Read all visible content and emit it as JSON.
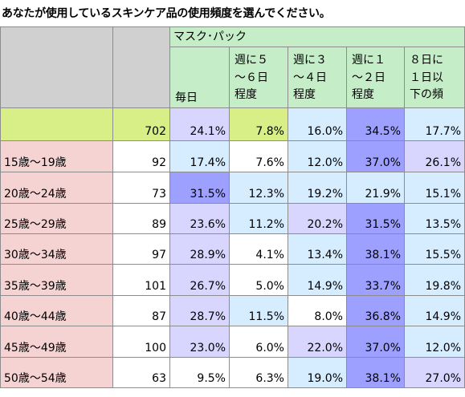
{
  "title": "あなたが使用しているスキンケア品の使用頻度を選んでください。",
  "chart_data": {
    "type": "table",
    "group_header": "マスク･パック",
    "columns": [
      [
        "毎日"
      ],
      [
        "週に５",
        "～６日",
        "程度"
      ],
      [
        "週に３",
        "～４日",
        "程度"
      ],
      [
        "週に１",
        "～２日",
        "程度"
      ],
      [
        "８日に",
        "１日以",
        "下の頻"
      ]
    ],
    "rows": [
      {
        "label": "",
        "n": "702",
        "values": [
          "24.1%",
          "7.8%",
          "16.0%",
          "34.5%",
          "17.7%"
        ]
      },
      {
        "label": "15歳～19歳",
        "n": "92",
        "values": [
          "17.4%",
          "7.6%",
          "12.0%",
          "37.0%",
          "26.1%"
        ]
      },
      {
        "label": "20歳～24歳",
        "n": "73",
        "values": [
          "31.5%",
          "12.3%",
          "19.2%",
          "21.9%",
          "15.1%"
        ]
      },
      {
        "label": "25歳～29歳",
        "n": "89",
        "values": [
          "23.6%",
          "11.2%",
          "20.2%",
          "31.5%",
          "13.5%"
        ]
      },
      {
        "label": "30歳～34歳",
        "n": "97",
        "values": [
          "28.9%",
          "4.1%",
          "13.4%",
          "38.1%",
          "15.5%"
        ]
      },
      {
        "label": "35歳～39歳",
        "n": "101",
        "values": [
          "26.7%",
          "5.0%",
          "14.9%",
          "33.7%",
          "19.8%"
        ]
      },
      {
        "label": "40歳～44歳",
        "n": "87",
        "values": [
          "28.7%",
          "11.5%",
          "8.0%",
          "36.8%",
          "14.9%"
        ]
      },
      {
        "label": "45歳～49歳",
        "n": "100",
        "values": [
          "23.0%",
          "6.0%",
          "22.0%",
          "37.0%",
          "12.0%"
        ]
      },
      {
        "label": "50歳～54歳",
        "n": "63",
        "values": [
          "9.5%",
          "6.3%",
          "19.0%",
          "38.1%",
          "27.0%"
        ]
      }
    ],
    "cell_colors": [
      [
        "#d8d6ff",
        "#d8ef87",
        "#d6ecff",
        "#9da0ff",
        "#d6ecff"
      ],
      [
        "#d6ecff",
        "#ffffff",
        "#d6ecff",
        "#9da0ff",
        "#d8d6ff"
      ],
      [
        "#9da0ff",
        "#d6ecff",
        "#d6ecff",
        "#d6ecff",
        "#d6ecff"
      ],
      [
        "#d8d6ff",
        "#d6ecff",
        "#d8d6ff",
        "#9da0ff",
        "#d6ecff"
      ],
      [
        "#d8d6ff",
        "#ffffff",
        "#d6ecff",
        "#9da0ff",
        "#d6ecff"
      ],
      [
        "#d8d6ff",
        "#ffffff",
        "#d6ecff",
        "#9da0ff",
        "#d6ecff"
      ],
      [
        "#d8d6ff",
        "#d6ecff",
        "#ffffff",
        "#9da0ff",
        "#d6ecff"
      ],
      [
        "#d8d6ff",
        "#ffffff",
        "#d8d6ff",
        "#9da0ff",
        "#d6ecff"
      ],
      [
        "#ffffff",
        "#ffffff",
        "#d6ecff",
        "#9da0ff",
        "#d8d6ff"
      ]
    ]
  }
}
